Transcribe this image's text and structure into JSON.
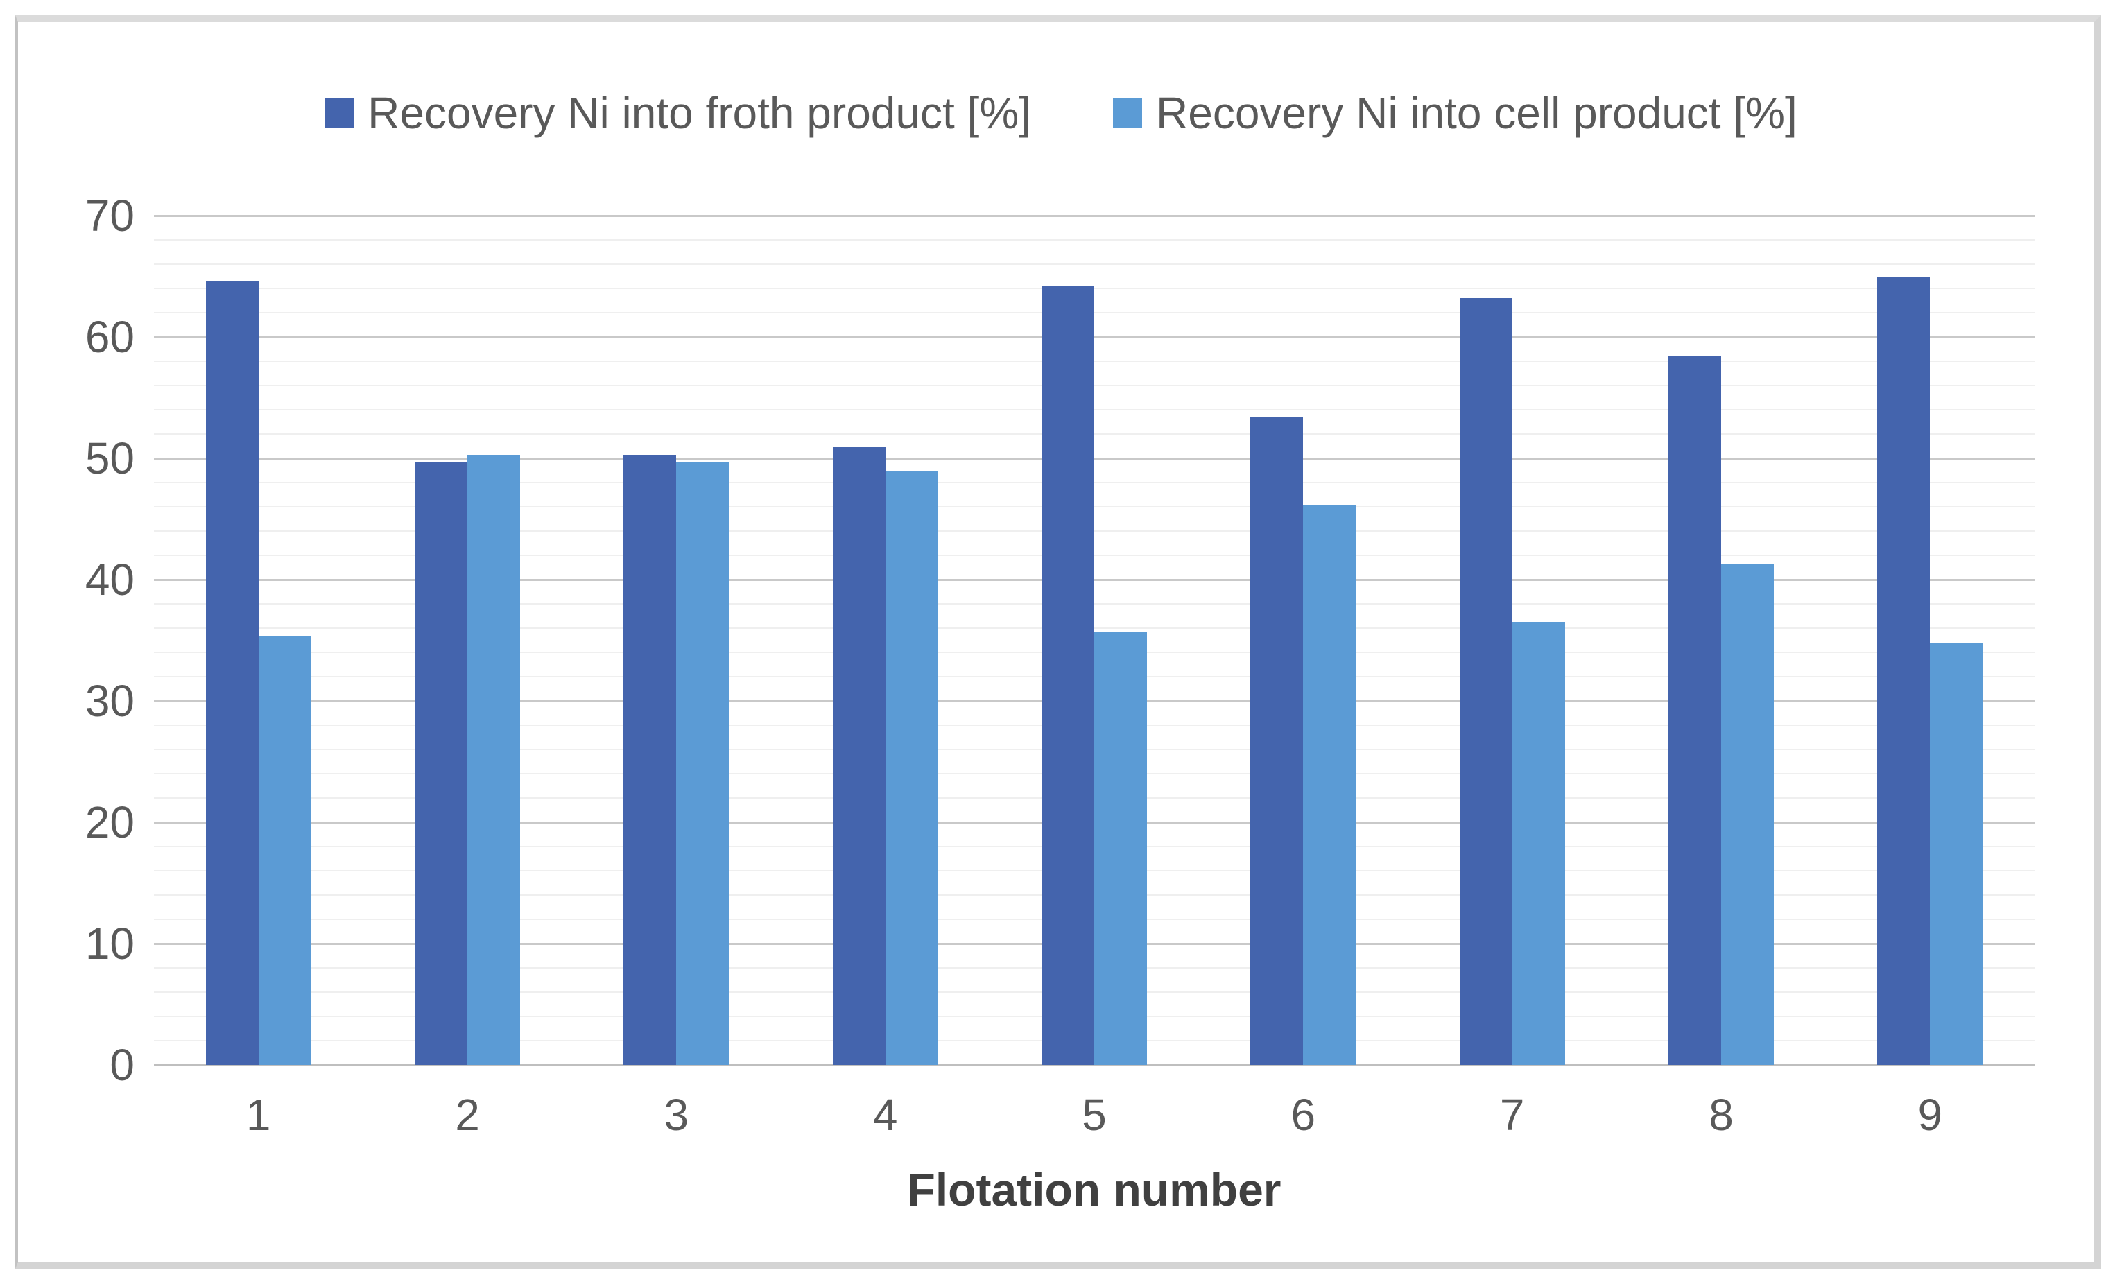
{
  "chart_data": {
    "type": "bar",
    "title": "",
    "categories": [
      "1",
      "2",
      "3",
      "4",
      "5",
      "6",
      "7",
      "8",
      "9"
    ],
    "series": [
      {
        "name": "Recovery Ni into froth product [%]",
        "color": "#4464AD",
        "values": [
          64.6,
          49.7,
          50.3,
          50.9,
          64.2,
          53.4,
          63.2,
          58.4,
          64.9
        ]
      },
      {
        "name": "Recovery Ni into cell product [%]",
        "color": "#5B9BD5",
        "values": [
          35.4,
          50.3,
          49.7,
          48.9,
          35.7,
          46.2,
          36.5,
          41.3,
          34.8
        ]
      }
    ],
    "xlabel": "Flotation number",
    "ylabel": "",
    "ylim": [
      0,
      70
    ],
    "ytick_step": 10,
    "yminor_step": 2,
    "ytick_labels": [
      "0",
      "10",
      "20",
      "30",
      "40",
      "50",
      "60",
      "70"
    ],
    "legend_position": "top",
    "grid": "major-and-minor-horizontal"
  },
  "colors": {
    "major_gridline": "#c9c9c9",
    "minor_gridline": "#efefef",
    "axis_line": "#bfbfbf",
    "tick_text": "#595959",
    "legend_text": "#595959",
    "axis_title_text": "#404040",
    "frame_border": "#d4d4d4",
    "background": "#ffffff"
  }
}
